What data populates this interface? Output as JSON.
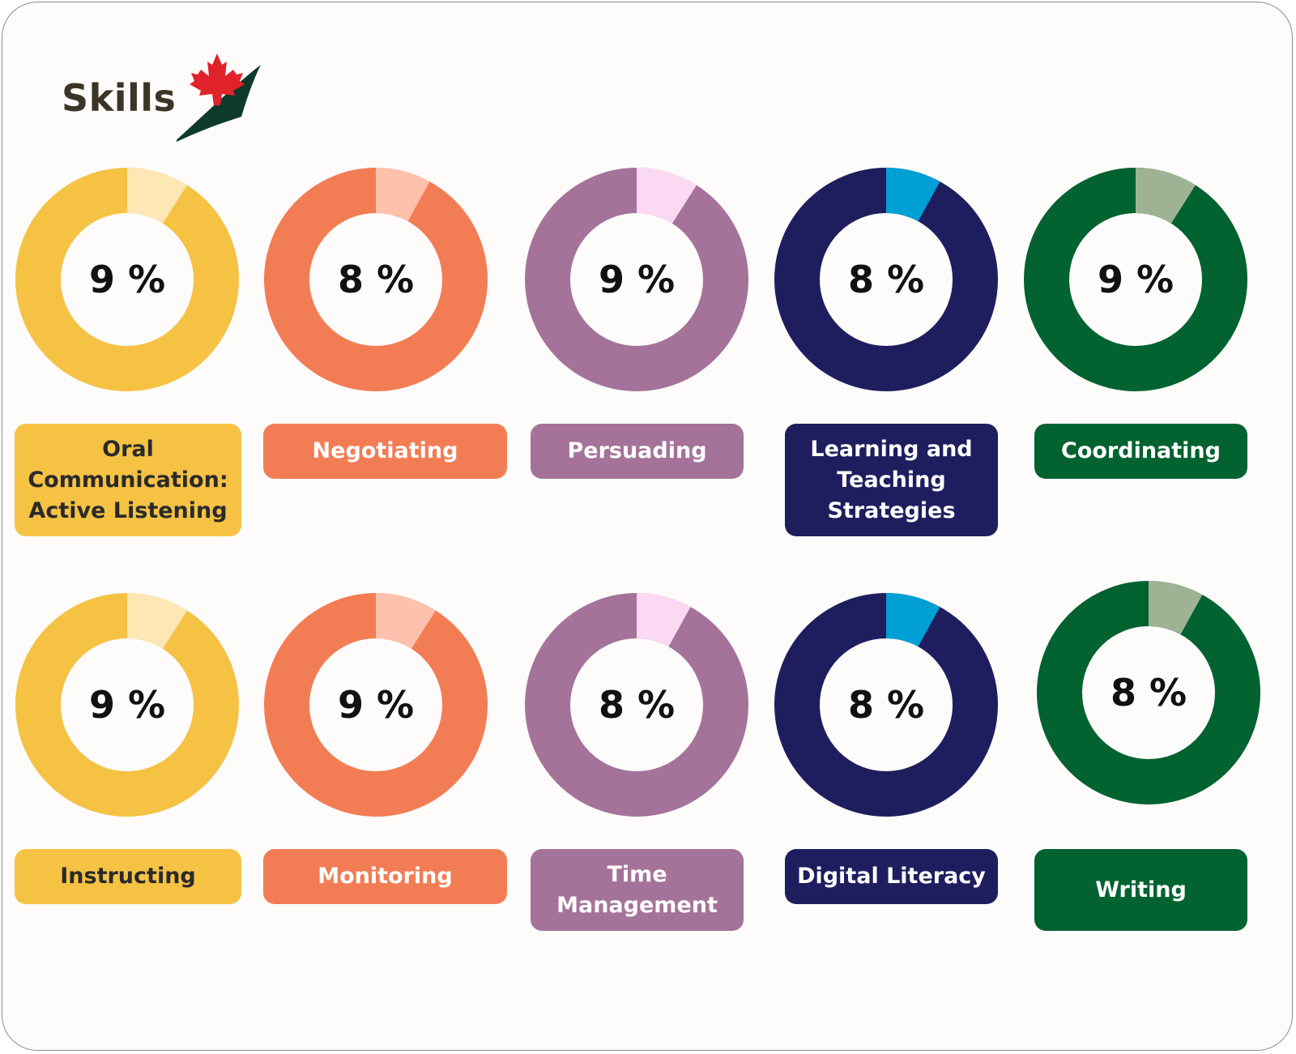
{
  "header": {
    "title": "Skills",
    "logo_icon": "maple-leaf-checkmark-icon"
  },
  "colors": {
    "yellow": {
      "main": "#f5c244",
      "light": "#fde7b5",
      "text": "#2a2a2a"
    },
    "orange": {
      "main": "#f27d55",
      "light": "#fec1ae",
      "text": "#ffffff"
    },
    "purple": {
      "main": "#a57399",
      "light": "#fcd9f2",
      "text": "#ffffff"
    },
    "navy": {
      "main": "#1e1e5f",
      "light": "#009fd4",
      "text": "#ffffff"
    },
    "green": {
      "main": "#026230",
      "light": "#9fb394",
      "text": "#ffffff"
    }
  },
  "chart_data": {
    "type": "pie",
    "unit": "%",
    "items": [
      {
        "label": "Oral Communication: Active Listening",
        "value": 9,
        "display": "9 %",
        "color": "yellow"
      },
      {
        "label": "Negotiating",
        "value": 8,
        "display": "8 %",
        "color": "orange"
      },
      {
        "label": "Persuading",
        "value": 9,
        "display": "9 %",
        "color": "purple"
      },
      {
        "label": "Learning and Teaching Strategies",
        "value": 8,
        "display": "8 %",
        "color": "navy"
      },
      {
        "label": "Coordinating",
        "value": 9,
        "display": "9 %",
        "color": "green"
      },
      {
        "label": "Instructing",
        "value": 9,
        "display": "9 %",
        "color": "yellow"
      },
      {
        "label": "Monitoring",
        "value": 9,
        "display": "9 %",
        "color": "orange"
      },
      {
        "label": "Time Management",
        "value": 8,
        "display": "8 %",
        "color": "purple"
      },
      {
        "label": "Digital Literacy",
        "value": 8,
        "display": "8 %",
        "color": "navy"
      },
      {
        "label": "Writing",
        "value": 8,
        "display": "8 %",
        "color": "green"
      }
    ]
  }
}
